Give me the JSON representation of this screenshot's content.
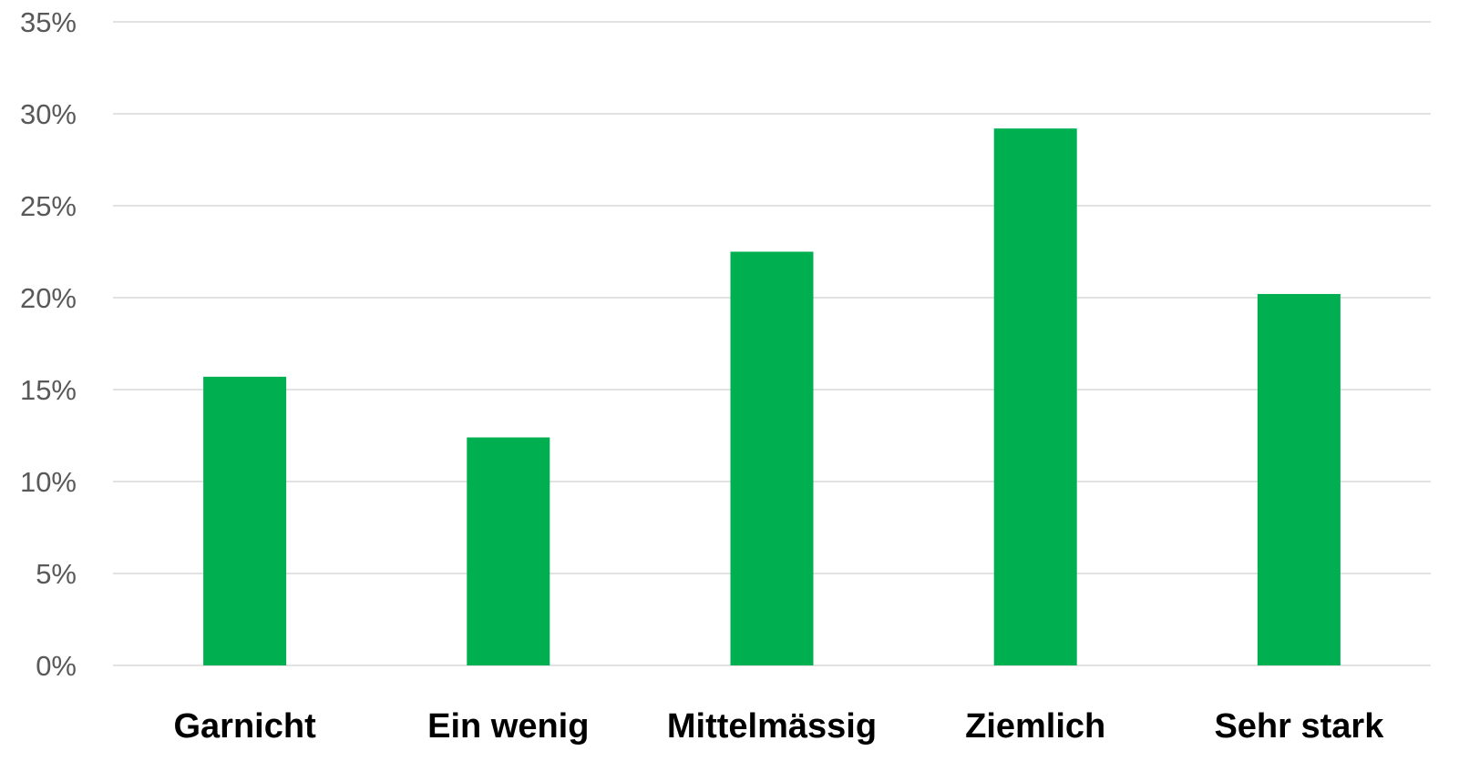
{
  "chart_data": {
    "type": "bar",
    "title": "",
    "xlabel": "",
    "ylabel": "",
    "categories": [
      "Garnicht",
      "Ein wenig",
      "Mittelmässig",
      "Ziemlich",
      "Sehr stark"
    ],
    "series": [
      {
        "values": [
          15.7,
          12.4,
          22.5,
          29.2,
          20.2
        ]
      }
    ],
    "ylim": [
      0,
      35
    ],
    "yticks": [
      "0%",
      "5%",
      "10%",
      "15%",
      "20%",
      "25%",
      "30%",
      "35%"
    ],
    "ytick_values": [
      0,
      5,
      10,
      15,
      20,
      25,
      30,
      35
    ],
    "grid": true,
    "legend": "none",
    "bar_color": "#00b050"
  }
}
